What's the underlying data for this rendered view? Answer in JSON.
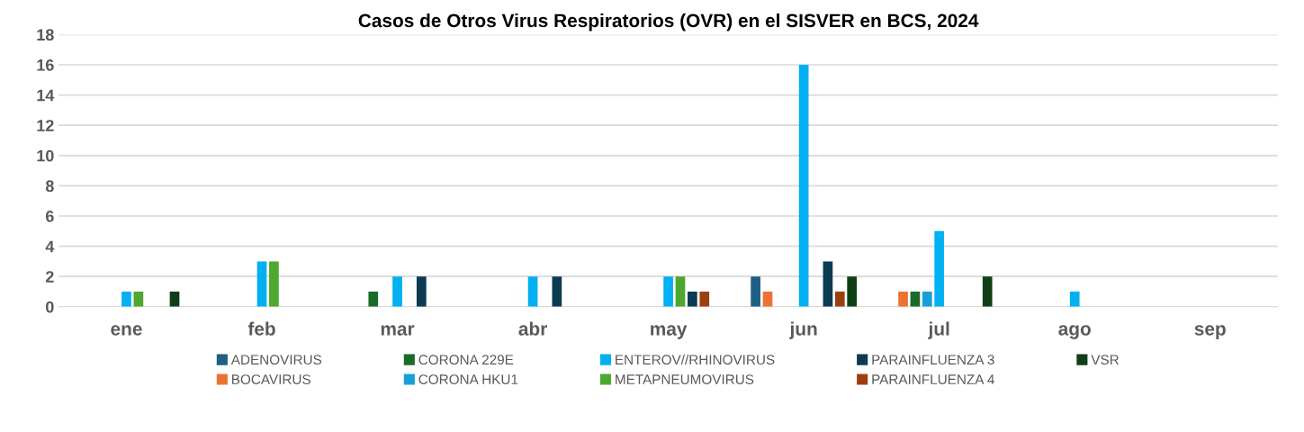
{
  "chart_data": {
    "type": "bar",
    "title": "Casos de Otros Virus Respiratorios (OVR) en el SISVER en BCS, 2024",
    "categories": [
      "ene",
      "feb",
      "mar",
      "abr",
      "may",
      "jun",
      "jul",
      "ago",
      "sep"
    ],
    "series": [
      {
        "name": "ADENOVIRUS",
        "color": "#1f5f84",
        "values": [
          0,
          0,
          0,
          0,
          0,
          2,
          0,
          0,
          0
        ]
      },
      {
        "name": "BOCAVIRUS",
        "color": "#ed7232",
        "values": [
          0,
          0,
          0,
          0,
          0,
          1,
          1,
          0,
          0
        ]
      },
      {
        "name": "CORONA 229E",
        "color": "#1a6b2a",
        "values": [
          0,
          0,
          1,
          0,
          0,
          0,
          1,
          0,
          0
        ]
      },
      {
        "name": "CORONA HKU1",
        "color": "#169fd8",
        "values": [
          0,
          0,
          0,
          0,
          0,
          0,
          1,
          0,
          0
        ]
      },
      {
        "name": "ENTEROV//RHINOVIRUS",
        "color": "#00b0f0",
        "values": [
          1,
          3,
          2,
          2,
          2,
          16,
          5,
          1,
          0
        ]
      },
      {
        "name": "METAPNEUMOVIRUS",
        "color": "#4ea72e",
        "values": [
          1,
          3,
          0,
          0,
          2,
          0,
          0,
          0,
          0
        ]
      },
      {
        "name": "PARAINFLUENZA 3",
        "color": "#0c3a52",
        "values": [
          0,
          0,
          2,
          2,
          1,
          3,
          0,
          0,
          0
        ]
      },
      {
        "name": "PARAINFLUENZA 4",
        "color": "#9c3f10",
        "values": [
          0,
          0,
          0,
          0,
          1,
          1,
          0,
          0,
          0
        ]
      },
      {
        "name": "VSR",
        "color": "#0f3f16",
        "values": [
          1,
          0,
          0,
          0,
          0,
          2,
          2,
          0,
          0
        ]
      }
    ],
    "ylim": [
      0,
      18
    ],
    "yticks": [
      0,
      2,
      4,
      6,
      8,
      10,
      12,
      14,
      16,
      18
    ],
    "grid": "y",
    "legend": "bottom"
  }
}
